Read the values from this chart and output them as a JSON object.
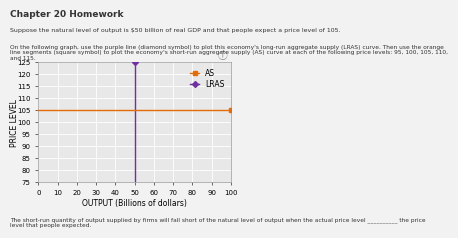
{
  "natural_output": 50,
  "expected_price": 105,
  "ylim": [
    75,
    125
  ],
  "xlim": [
    0,
    100
  ],
  "yticks": [
    75,
    80,
    85,
    90,
    95,
    100,
    105,
    110,
    115,
    120,
    125
  ],
  "xticks": [
    0,
    10,
    20,
    30,
    40,
    50,
    60,
    70,
    80,
    90,
    100
  ],
  "ylabel": "PRICE LEVEL",
  "xlabel": "OUTPUT (Billions of dollars)",
  "lras_color": "#7030a0",
  "as_color": "#e36c09",
  "lras_label": "LRAS",
  "as_label": "AS",
  "page_bg": "#f2f2f2",
  "plot_bg": "#e8e8e8",
  "grid_color": "#ffffff",
  "title": "Chapter 20 Homework",
  "page_text_1": "Suppose the natural level of output is $50 billion of real GDP and that people expect a price level of 105.",
  "page_text_2": "On the following graph, use the purple line (diamond symbol) to plot this economy's long-run aggregate supply (LRAS) curve. Then use the orange\nline segments (square symbol) to plot the economy's short-run aggregate supply (AS) curve at each of the following price levels: 95, 100, 105, 110,\nand 115.",
  "bottom_text": "The short-run quantity of output supplied by firms will fall short of the natural level of output when the actual price level __________ the price\nlevel that people expected.",
  "tick_fontsize": 5.0,
  "label_fontsize": 5.5,
  "legend_fontsize": 5.5
}
